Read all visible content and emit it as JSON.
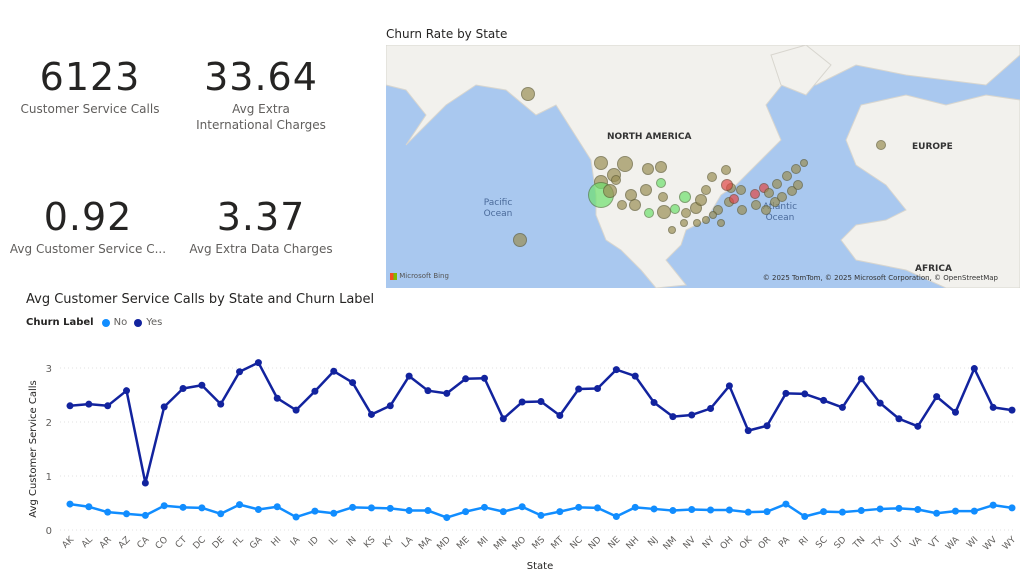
{
  "kpis": [
    {
      "value": "6123",
      "label": "Customer Service Calls"
    },
    {
      "value": "33.64",
      "label": "Avg Extra International Charges"
    },
    {
      "value": "0.92",
      "label": "Avg Customer Service C..."
    },
    {
      "value": "3.37",
      "label": "Avg Extra Data Charges"
    }
  ],
  "map": {
    "title": "Churn Rate by State",
    "labels": {
      "north_america": "NORTH AMERICA",
      "europe": "EUROPE",
      "africa": "AFRICA",
      "pacific": "Pacific Ocean",
      "atlantic": "Atlantic Ocean"
    },
    "attribution_logo": "Microsoft Bing",
    "copyright": "© 2025 TomTom, © 2025 Microsoft Corporation, © OpenStreetMap",
    "colors": {
      "water": "#a9c8ef",
      "land": "#f2f1ed",
      "low": "#6ee06e",
      "mid": "#9a8f55",
      "high": "#e04848"
    }
  },
  "chart_data": {
    "type": "line",
    "title": "Avg Customer Service Calls by State and Churn Label",
    "legend_title": "Churn Label",
    "legend_placement": "top-left",
    "xlabel": "State",
    "ylabel": "Avg Customer Service Calls",
    "ylim": [
      0,
      3
    ],
    "yticks": [
      "0",
      "1",
      "2",
      "3"
    ],
    "grid": true,
    "categories": [
      "AK",
      "AL",
      "AR",
      "AZ",
      "CA",
      "CO",
      "CT",
      "DC",
      "DE",
      "FL",
      "GA",
      "HI",
      "IA",
      "ID",
      "IL",
      "IN",
      "KS",
      "KY",
      "LA",
      "MA",
      "MD",
      "ME",
      "MI",
      "MN",
      "MO",
      "MS",
      "MT",
      "NC",
      "ND",
      "NE",
      "NH",
      "NJ",
      "NM",
      "NV",
      "NY",
      "OH",
      "OK",
      "OR",
      "PA",
      "RI",
      "SC",
      "SD",
      "TN",
      "TX",
      "UT",
      "VA",
      "VT",
      "WA",
      "WI",
      "WV",
      "WY"
    ],
    "series": [
      {
        "name": "No",
        "color": "#118dff",
        "values": [
          0.48,
          0.43,
          0.33,
          0.3,
          0.27,
          0.45,
          0.42,
          0.41,
          0.3,
          0.47,
          0.38,
          0.43,
          0.24,
          0.35,
          0.31,
          0.42,
          0.41,
          0.4,
          0.36,
          0.36,
          0.23,
          0.34,
          0.42,
          0.34,
          0.43,
          0.27,
          0.34,
          0.42,
          0.41,
          0.25,
          0.42,
          0.39,
          0.36,
          0.38,
          0.37,
          0.37,
          0.33,
          0.34,
          0.48,
          0.25,
          0.34,
          0.33,
          0.36,
          0.39,
          0.4,
          0.38,
          0.31,
          0.35,
          0.35,
          0.46,
          0.41
        ]
      },
      {
        "name": "Yes",
        "color": "#12239e",
        "values": [
          2.3,
          2.33,
          2.3,
          2.58,
          0.87,
          2.28,
          2.62,
          2.68,
          2.33,
          2.93,
          3.1,
          2.44,
          2.22,
          2.57,
          2.94,
          2.73,
          2.14,
          2.3,
          2.85,
          2.58,
          2.53,
          2.8,
          2.81,
          2.06,
          2.37,
          2.38,
          2.12,
          2.61,
          2.62,
          2.97,
          2.85,
          2.36,
          2.1,
          2.13,
          2.25,
          2.67,
          1.84,
          1.93,
          2.53,
          2.52,
          2.4,
          2.27,
          2.8,
          2.35,
          2.06,
          1.92,
          2.47,
          2.18,
          2.99,
          2.27,
          2.22
        ]
      }
    ]
  }
}
